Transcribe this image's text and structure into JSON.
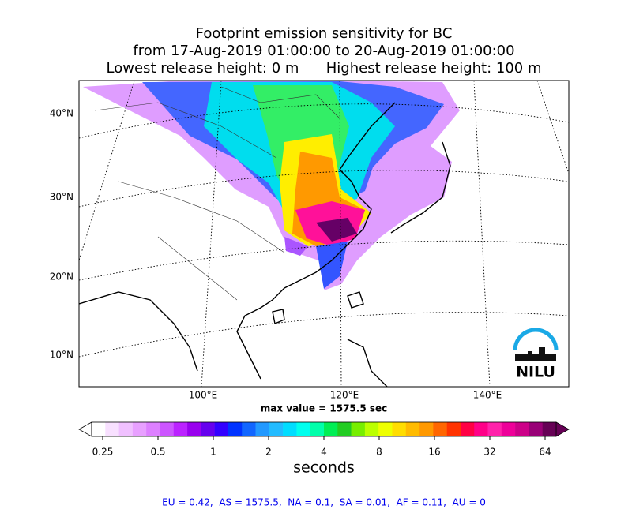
{
  "header": {
    "title_lines": [
      "Footprint emission sensitivity for BC",
      "from 17-Aug-2019 01:00:00 to 20-Aug-2019 01:00:00",
      "Lowest release height: 0 m      Highest release height: 100 m"
    ]
  },
  "map": {
    "lat_labels": [
      "40°N",
      "30°N",
      "20°N",
      "10°N"
    ],
    "lon_labels": [
      "100°E",
      "120°E",
      "140°E"
    ],
    "logo": "NILU",
    "max_value": "max value = 1575.5 sec"
  },
  "colorbar": {
    "ticks": [
      0.25,
      0.5,
      1,
      2,
      4,
      8,
      16,
      32,
      64
    ],
    "label": "seconds",
    "colors": [
      "#ffffff",
      "#f8e0ff",
      "#f0c0ff",
      "#e8a0ff",
      "#dd80ff",
      "#cc55ff",
      "#bb22ff",
      "#9900ee",
      "#6600ee",
      "#3300ff",
      "#0033ff",
      "#1166ff",
      "#2299ff",
      "#22bbff",
      "#00ddff",
      "#00ffee",
      "#00ffaa",
      "#00ee55",
      "#22cc22",
      "#77ee00",
      "#bbff00",
      "#eeff00",
      "#ffdd00",
      "#ffbb00",
      "#ff9900",
      "#ff6600",
      "#ff3300",
      "#ff0044",
      "#ff0088",
      "#ff22aa",
      "#ee0099",
      "#cc0088",
      "#990077",
      "#660055"
    ]
  },
  "footer": "EU = 0.42,  AS = 1575.5,  NA = 0.1,  SA = 0.01,  AF = 0.11,  AU = 0"
}
